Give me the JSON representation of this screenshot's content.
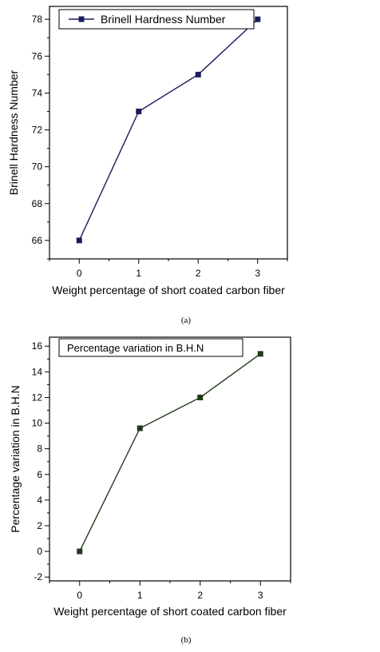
{
  "chart_data": [
    {
      "type": "line",
      "xlabel": "Weight percentage of short coated carbon fiber",
      "ylabel": "Brinell Hardness Number",
      "caption": "(a)",
      "x": [
        0,
        1,
        2,
        3
      ],
      "xlim": [
        -0.5,
        3.5
      ],
      "ylim": [
        65,
        78.7
      ],
      "xticks": [
        "0",
        "1",
        "2",
        "3"
      ],
      "yticks": [
        "66",
        "68",
        "70",
        "72",
        "74",
        "76",
        "78"
      ],
      "legend_position": "top-left",
      "series": [
        {
          "name": "Brinell Hardness Number",
          "values": [
            66,
            73,
            75,
            78
          ],
          "color": "#1a1a5e"
        }
      ]
    },
    {
      "type": "line",
      "xlabel": "Weight percentage of short coated carbon fiber",
      "ylabel": "Percentage variation in B.H.N",
      "caption": "(b)",
      "x": [
        0,
        1,
        2,
        3
      ],
      "xlim": [
        -0.5,
        3.5
      ],
      "ylim": [
        -2.3,
        16.7
      ],
      "xticks": [
        "0",
        "1",
        "2",
        "3"
      ],
      "yticks": [
        "-2",
        "0",
        "2",
        "4",
        "6",
        "8",
        "10",
        "12",
        "14",
        "16"
      ],
      "legend_position": "top-left",
      "series": [
        {
          "name": "Percentage variation in B.H.N",
          "values": [
            0,
            9.6,
            12,
            15.4
          ],
          "color": "#1f3a16"
        }
      ]
    }
  ]
}
